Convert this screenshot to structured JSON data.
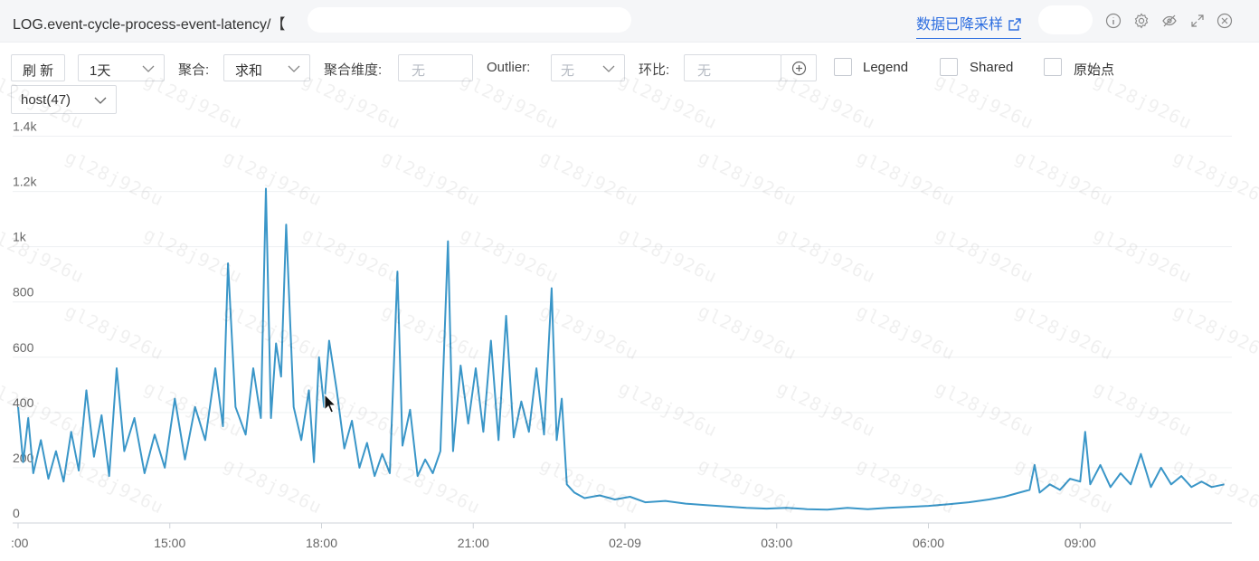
{
  "header": {
    "title": "LOG.event-cycle-process-event-latency/【",
    "downsample_link": "数据已降采样"
  },
  "toolbar": {
    "refresh": "刷 新",
    "time_range": "1天",
    "agg_label": "聚合:",
    "agg_value": "求和",
    "agg_dim_label": "聚合维度:",
    "agg_dim_placeholder": "无",
    "outlier_label": "Outlier:",
    "outlier_value": "无",
    "ratio_label": "环比:",
    "ratio_placeholder": "无",
    "legend_label": "Legend",
    "shared_label": "Shared",
    "raw_points_label": "原始点",
    "host_select": "host(47)"
  },
  "watermark": "gl28j926u",
  "chart_data": {
    "type": "line",
    "title": "",
    "xlabel": "",
    "ylabel": "",
    "x_ticks": [
      ":00",
      "15:00",
      "18:00",
      "21:00",
      "02-09",
      "03:00",
      "06:00",
      "09:00"
    ],
    "x_tick_hours": [
      12,
      15,
      18,
      21,
      24,
      27,
      30,
      33
    ],
    "y_ticks": [
      "0",
      "200",
      "400",
      "600",
      "800",
      "1k",
      "1.2k",
      "1.4k"
    ],
    "y_tick_values": [
      0,
      200,
      400,
      600,
      800,
      1000,
      1200,
      1400
    ],
    "xlim_hours": [
      12,
      36
    ],
    "ylim": [
      0,
      1500
    ],
    "grid": "horizontal",
    "color": "#3a96c8",
    "series": [
      {
        "values": [
          [
            12.0,
            420
          ],
          [
            12.1,
            220
          ],
          [
            12.2,
            380
          ],
          [
            12.3,
            180
          ],
          [
            12.45,
            300
          ],
          [
            12.6,
            160
          ],
          [
            12.75,
            260
          ],
          [
            12.9,
            150
          ],
          [
            13.05,
            330
          ],
          [
            13.2,
            190
          ],
          [
            13.35,
            480
          ],
          [
            13.5,
            240
          ],
          [
            13.65,
            390
          ],
          [
            13.8,
            170
          ],
          [
            13.95,
            560
          ],
          [
            14.1,
            260
          ],
          [
            14.3,
            380
          ],
          [
            14.5,
            180
          ],
          [
            14.7,
            320
          ],
          [
            14.9,
            200
          ],
          [
            15.1,
            450
          ],
          [
            15.3,
            230
          ],
          [
            15.5,
            420
          ],
          [
            15.7,
            300
          ],
          [
            15.9,
            560
          ],
          [
            16.05,
            350
          ],
          [
            16.15,
            940
          ],
          [
            16.3,
            420
          ],
          [
            16.5,
            320
          ],
          [
            16.65,
            560
          ],
          [
            16.8,
            380
          ],
          [
            16.9,
            1210
          ],
          [
            17.0,
            380
          ],
          [
            17.1,
            650
          ],
          [
            17.2,
            530
          ],
          [
            17.3,
            1080
          ],
          [
            17.45,
            420
          ],
          [
            17.6,
            300
          ],
          [
            17.75,
            480
          ],
          [
            17.85,
            220
          ],
          [
            17.95,
            600
          ],
          [
            18.05,
            420
          ],
          [
            18.15,
            660
          ],
          [
            18.3,
            480
          ],
          [
            18.45,
            270
          ],
          [
            18.6,
            370
          ],
          [
            18.75,
            200
          ],
          [
            18.9,
            290
          ],
          [
            19.05,
            170
          ],
          [
            19.2,
            250
          ],
          [
            19.35,
            180
          ],
          [
            19.5,
            910
          ],
          [
            19.6,
            280
          ],
          [
            19.75,
            410
          ],
          [
            19.9,
            170
          ],
          [
            20.05,
            230
          ],
          [
            20.2,
            180
          ],
          [
            20.35,
            260
          ],
          [
            20.5,
            1020
          ],
          [
            20.6,
            260
          ],
          [
            20.75,
            570
          ],
          [
            20.9,
            360
          ],
          [
            21.05,
            560
          ],
          [
            21.2,
            330
          ],
          [
            21.35,
            660
          ],
          [
            21.5,
            300
          ],
          [
            21.65,
            750
          ],
          [
            21.8,
            310
          ],
          [
            21.95,
            440
          ],
          [
            22.1,
            330
          ],
          [
            22.25,
            560
          ],
          [
            22.4,
            320
          ],
          [
            22.55,
            850
          ],
          [
            22.65,
            300
          ],
          [
            22.75,
            450
          ],
          [
            22.85,
            140
          ],
          [
            23.0,
            110
          ],
          [
            23.2,
            90
          ],
          [
            23.5,
            100
          ],
          [
            23.8,
            85
          ],
          [
            24.1,
            95
          ],
          [
            24.4,
            75
          ],
          [
            24.8,
            80
          ],
          [
            25.2,
            70
          ],
          [
            25.6,
            65
          ],
          [
            26.0,
            60
          ],
          [
            26.4,
            55
          ],
          [
            26.8,
            52
          ],
          [
            27.2,
            55
          ],
          [
            27.6,
            50
          ],
          [
            28.0,
            48
          ],
          [
            28.4,
            55
          ],
          [
            28.8,
            50
          ],
          [
            29.2,
            55
          ],
          [
            29.6,
            58
          ],
          [
            30.0,
            62
          ],
          [
            30.4,
            68
          ],
          [
            30.8,
            75
          ],
          [
            31.2,
            85
          ],
          [
            31.5,
            95
          ],
          [
            31.8,
            110
          ],
          [
            32.0,
            120
          ],
          [
            32.1,
            210
          ],
          [
            32.2,
            110
          ],
          [
            32.4,
            140
          ],
          [
            32.6,
            120
          ],
          [
            32.8,
            160
          ],
          [
            33.0,
            150
          ],
          [
            33.1,
            330
          ],
          [
            33.2,
            140
          ],
          [
            33.4,
            210
          ],
          [
            33.6,
            130
          ],
          [
            33.8,
            180
          ],
          [
            34.0,
            140
          ],
          [
            34.2,
            250
          ],
          [
            34.4,
            130
          ],
          [
            34.6,
            200
          ],
          [
            34.8,
            140
          ],
          [
            35.0,
            170
          ],
          [
            35.2,
            130
          ],
          [
            35.4,
            150
          ],
          [
            35.6,
            130
          ],
          [
            35.85,
            140
          ]
        ]
      }
    ]
  }
}
